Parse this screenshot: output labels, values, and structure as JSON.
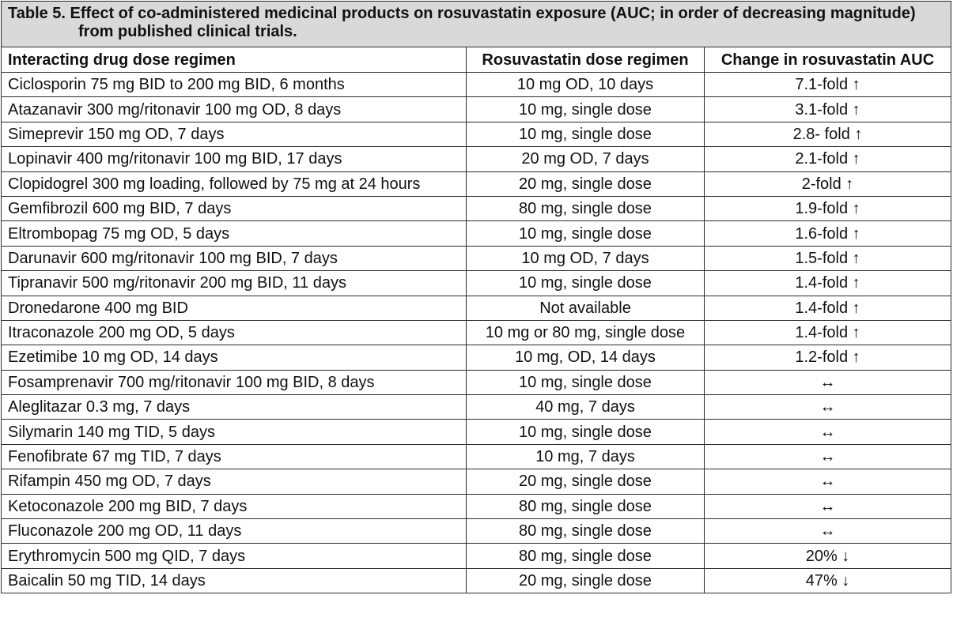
{
  "table": {
    "caption": "Table 5. Effect of co-administered medicinal products on rosuvastatin exposure (AUC; in order of decreasing magnitude) from published clinical trials.",
    "headers": [
      "Interacting drug dose regimen",
      "Rosuvastatin dose regimen",
      "Change in rosuvastatin AUC"
    ],
    "rows": [
      [
        "Ciclosporin 75 mg BID to 200 mg BID, 6 months",
        "10 mg OD, 10 days",
        "7.1-fold ↑"
      ],
      [
        "Atazanavir 300 mg/ritonavir 100 mg OD, 8 days",
        "10 mg, single dose",
        "3.1-fold ↑"
      ],
      [
        "Simeprevir 150 mg OD, 7 days",
        "10 mg, single dose",
        "2.8- fold ↑"
      ],
      [
        "Lopinavir 400 mg/ritonavir 100 mg BID, 17 days",
        "20 mg OD, 7 days",
        "2.1-fold ↑"
      ],
      [
        "Clopidogrel 300 mg loading, followed by 75 mg at 24 hours",
        "20 mg, single dose",
        "2-fold ↑"
      ],
      [
        "Gemfibrozil 600 mg BID, 7 days",
        "80 mg, single dose",
        "1.9-fold ↑"
      ],
      [
        "Eltrombopag 75 mg OD, 5 days",
        "10 mg, single dose",
        "1.6-fold ↑"
      ],
      [
        "Darunavir 600 mg/ritonavir 100 mg BID, 7 days",
        "10 mg OD, 7 days",
        "1.5-fold ↑"
      ],
      [
        "Tipranavir 500 mg/ritonavir 200 mg BID, 11 days",
        "10 mg, single dose",
        "1.4-fold ↑"
      ],
      [
        "Dronedarone 400 mg BID",
        "Not available",
        "1.4-fold ↑"
      ],
      [
        "Itraconazole 200 mg OD, 5 days",
        "10 mg or 80 mg, single dose",
        "1.4-fold ↑"
      ],
      [
        "Ezetimibe 10 mg OD, 14 days",
        "10 mg, OD, 14 days",
        "1.2-fold ↑"
      ],
      [
        "Fosamprenavir 700 mg/ritonavir 100 mg BID, 8 days",
        "10 mg, single dose",
        "↔"
      ],
      [
        "Aleglitazar 0.3 mg, 7 days",
        "40 mg, 7 days",
        "↔"
      ],
      [
        "Silymarin 140 mg TID, 5 days",
        "10 mg, single dose",
        "↔"
      ],
      [
        "Fenofibrate 67 mg TID, 7 days",
        "10 mg, 7 days",
        "↔"
      ],
      [
        "Rifampin 450 mg OD, 7 days",
        "20 mg, single dose",
        "↔"
      ],
      [
        "Ketoconazole 200 mg BID, 7 days",
        "80 mg, single dose",
        "↔"
      ],
      [
        "Fluconazole 200 mg OD, 11 days",
        "80 mg, single dose",
        "↔"
      ],
      [
        "Erythromycin 500 mg QID, 7 days",
        "80 mg, single dose",
        "20% ↓"
      ],
      [
        "Baicalin 50 mg TID, 14 days",
        "20 mg, single dose",
        "47% ↓"
      ]
    ]
  }
}
